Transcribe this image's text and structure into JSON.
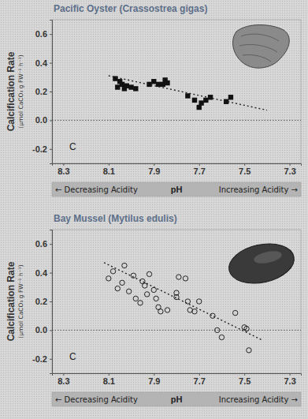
{
  "chart_data": [
    {
      "type": "scatter",
      "title": "Pacific Oyster (Crassostrea gigas)",
      "ylabel": "Calcification Rate",
      "ylabel_units": "(µmol CaCO₃ g FW⁻¹ h⁻¹)",
      "xlabel": "pH",
      "xlabel_left": "← Decreasing Acidity",
      "xlabel_right": "Increasing Acidity →",
      "annotation": "C",
      "xlim": [
        8.35,
        7.25
      ],
      "xticks": [
        8.3,
        8.1,
        7.9,
        7.7,
        7.5,
        7.3
      ],
      "ylim": [
        -0.3,
        0.7
      ],
      "yticks": [
        -0.2,
        {
          "value": 0,
          "label": "0.0"
        },
        0.2,
        0.4,
        0.6
      ],
      "hline": 0,
      "series": [
        {
          "type": "scatter",
          "marker": "square",
          "color": "#111111",
          "x": [
            8.07,
            8.05,
            8.06,
            8.04,
            8.03,
            8.02,
            8.0,
            7.98,
            7.92,
            7.9,
            7.88,
            7.86,
            7.85,
            7.84,
            7.75,
            7.72,
            7.7,
            7.69,
            7.67,
            7.65,
            7.58,
            7.56
          ],
          "values": [
            0.29,
            0.27,
            0.23,
            0.25,
            0.22,
            0.24,
            0.23,
            0.22,
            0.25,
            0.27,
            0.25,
            0.25,
            0.28,
            0.26,
            0.17,
            0.14,
            0.09,
            0.12,
            0.14,
            0.16,
            0.13,
            0.16
          ]
        },
        {
          "type": "line",
          "line_style": "dotted",
          "color": "#222222",
          "x": [
            8.1,
            7.4
          ],
          "values": [
            0.31,
            0.07
          ]
        }
      ]
    },
    {
      "type": "scatter",
      "title": "Bay Mussel (Mytilus edulis)",
      "ylabel": "Calcification Rate",
      "ylabel_units": "(µmol CaCO₃ g FW⁻¹ h⁻¹)",
      "xlabel": "pH",
      "xlabel_left": "← Decreasing Acidity",
      "xlabel_right": "Increasing Acidity →",
      "annotation": "C",
      "xlim": [
        8.35,
        7.25
      ],
      "xticks": [
        8.3,
        8.1,
        7.9,
        7.7,
        7.5,
        7.3
      ],
      "ylim": [
        -0.3,
        0.7
      ],
      "yticks": [
        -0.2,
        {
          "value": 0,
          "label": "0.0"
        },
        0.2,
        0.4,
        0.6
      ],
      "hline": 0,
      "series": [
        {
          "type": "scatter",
          "marker": "circle-open",
          "color": "#111111",
          "x": [
            8.1,
            8.08,
            8.06,
            8.04,
            8.03,
            8.01,
            7.99,
            7.98,
            7.96,
            7.95,
            7.94,
            7.93,
            7.92,
            7.9,
            7.89,
            7.88,
            7.87,
            7.84,
            7.8,
            7.8,
            7.79,
            7.76,
            7.75,
            7.74,
            7.72,
            7.7,
            7.64,
            7.62,
            7.6,
            7.54,
            7.5,
            7.49,
            7.48
          ],
          "values": [
            0.36,
            0.41,
            0.29,
            0.33,
            0.45,
            0.27,
            0.38,
            0.22,
            0.19,
            0.34,
            0.31,
            0.25,
            0.39,
            0.28,
            0.22,
            0.16,
            0.13,
            0.14,
            0.26,
            0.23,
            0.37,
            0.36,
            0.2,
            0.14,
            0.13,
            0.2,
            0.1,
            0.0,
            -0.05,
            0.12,
            0.02,
            0.01,
            -0.14
          ]
        },
        {
          "type": "line",
          "line_style": "dotted",
          "color": "#222222",
          "x": [
            8.12,
            7.42
          ],
          "values": [
            0.47,
            -0.07
          ]
        }
      ]
    }
  ]
}
